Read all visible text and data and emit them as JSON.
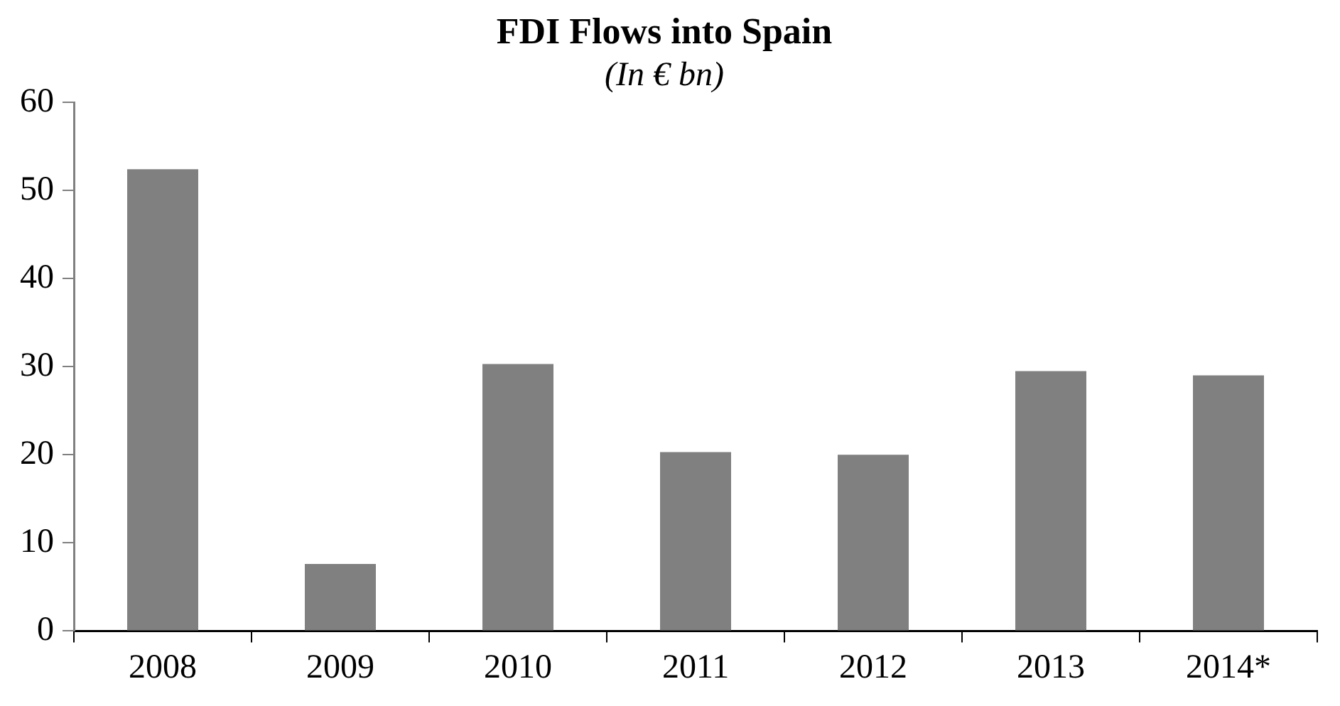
{
  "chart_data": {
    "type": "bar",
    "title": "FDI Flows into Spain",
    "subtitle": "(In € bn)",
    "categories": [
      "2008",
      "2009",
      "2010",
      "2011",
      "2012",
      "2013",
      "2014*"
    ],
    "values": [
      52.4,
      7.6,
      30.3,
      20.3,
      20.0,
      29.5,
      29.0
    ],
    "color": "#808080",
    "ylim": [
      0,
      60
    ],
    "yticks": [
      0,
      10,
      20,
      30,
      40,
      50,
      60
    ],
    "grid": false,
    "legend": false
  }
}
